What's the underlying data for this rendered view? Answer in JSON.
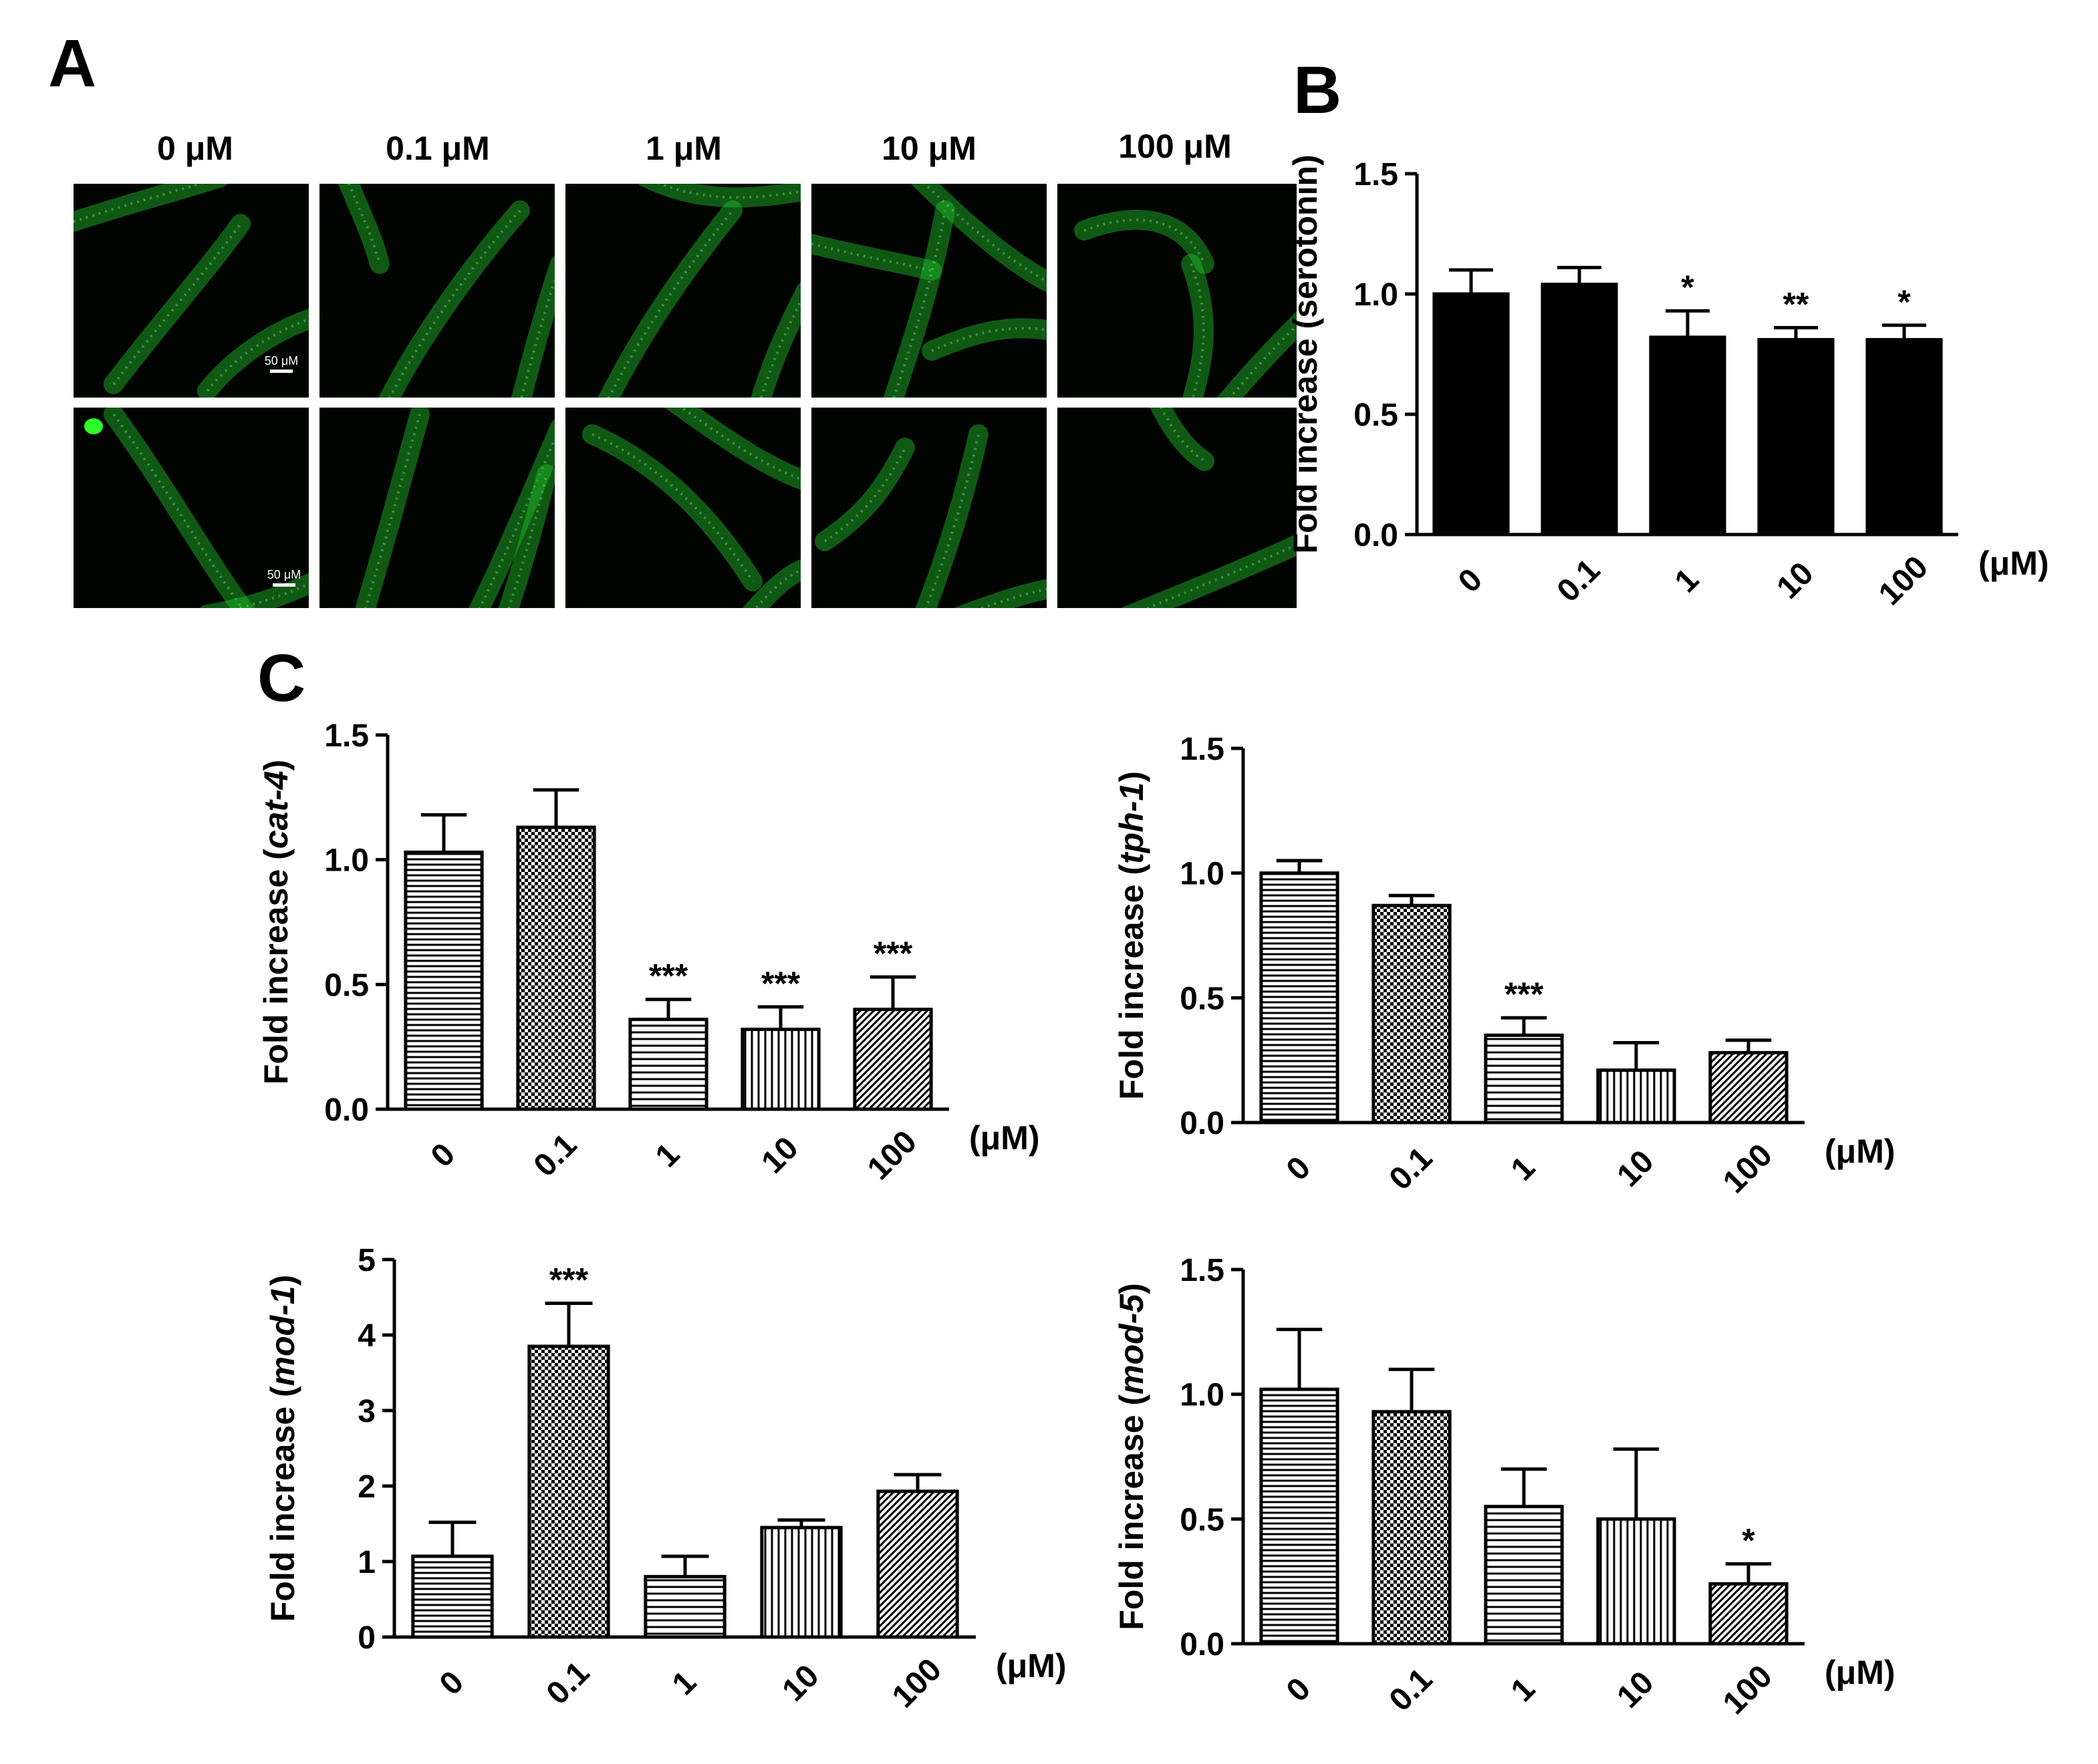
{
  "panel_a": {
    "letter": "A",
    "columns": [
      "0 μM",
      "0.1 μM",
      "1 μM",
      "10 μM",
      "100 μM"
    ],
    "scale_label": "50 μM"
  },
  "panel_b": {
    "letter": "B"
  },
  "panel_c": {
    "letter": "C"
  },
  "colors": {
    "micro_bg": "#020402",
    "fluorescence": "#22c22a",
    "bar": "#000000"
  },
  "chart_data": [
    {
      "id": "serotonin",
      "type": "bar",
      "pattern": "solid",
      "ylabel_prefix": "Fold increase (",
      "ylabel_gene": "serotonin",
      "ylabel_suffix": ")",
      "ylabel_italic": false,
      "xunit": "(μM)",
      "categories": [
        "0",
        "0.1",
        "1",
        "10",
        "100"
      ],
      "values": [
        1.0,
        1.04,
        0.82,
        0.81,
        0.81
      ],
      "errors": [
        0.1,
        0.07,
        0.11,
        0.05,
        0.06
      ],
      "significance": [
        "",
        "",
        "*",
        "**",
        "*"
      ],
      "ylim": [
        0,
        1.5
      ],
      "yticks": [
        "0.0",
        "0.5",
        "1.0",
        "1.5"
      ]
    },
    {
      "id": "cat4",
      "type": "bar",
      "pattern": "hatched",
      "ylabel_prefix": "Fold increase (",
      "ylabel_gene": "cat-4",
      "ylabel_suffix": ")",
      "ylabel_italic": true,
      "xunit": "(μM)",
      "categories": [
        "0",
        "0.1",
        "1",
        "10",
        "100"
      ],
      "values": [
        1.03,
        1.13,
        0.36,
        0.32,
        0.4
      ],
      "errors": [
        0.15,
        0.15,
        0.08,
        0.09,
        0.13
      ],
      "significance": [
        "",
        "",
        "***",
        "***",
        "***"
      ],
      "ylim": [
        0,
        1.5
      ],
      "yticks": [
        "0.0",
        "0.5",
        "1.0",
        "1.5"
      ]
    },
    {
      "id": "tph1",
      "type": "bar",
      "pattern": "hatched",
      "ylabel_prefix": "Fold increase (",
      "ylabel_gene": "tph-1",
      "ylabel_suffix": ")",
      "ylabel_italic": true,
      "xunit": "(μM)",
      "categories": [
        "0",
        "0.1",
        "1",
        "10",
        "100"
      ],
      "values": [
        1.0,
        0.87,
        0.35,
        0.21,
        0.28
      ],
      "errors": [
        0.05,
        0.04,
        0.07,
        0.11,
        0.05
      ],
      "significance": [
        "",
        "",
        "***",
        "",
        ""
      ],
      "ylim": [
        0,
        1.5
      ],
      "yticks": [
        "0.0",
        "0.5",
        "1.0",
        "1.5"
      ]
    },
    {
      "id": "mod1",
      "type": "bar",
      "pattern": "hatched",
      "ylabel_prefix": "Fold increase (",
      "ylabel_gene": "mod-1",
      "ylabel_suffix": ")",
      "ylabel_italic": true,
      "xunit": "(μM)",
      "categories": [
        "0",
        "0.1",
        "1",
        "10",
        "100"
      ],
      "values": [
        1.07,
        3.85,
        0.8,
        1.45,
        1.93
      ],
      "errors": [
        0.45,
        0.57,
        0.27,
        0.1,
        0.22
      ],
      "significance": [
        "",
        "***",
        "",
        "",
        ""
      ],
      "ylim": [
        0,
        5
      ],
      "yticks": [
        "0",
        "1",
        "2",
        "3",
        "4",
        "5"
      ]
    },
    {
      "id": "mod5",
      "type": "bar",
      "pattern": "hatched",
      "ylabel_prefix": "Fold increase (",
      "ylabel_gene": "mod-5",
      "ylabel_suffix": ")",
      "ylabel_italic": true,
      "xunit": "(μM)",
      "categories": [
        "0",
        "0.1",
        "1",
        "10",
        "100"
      ],
      "values": [
        1.02,
        0.93,
        0.55,
        0.5,
        0.24
      ],
      "errors": [
        0.24,
        0.17,
        0.15,
        0.28,
        0.08
      ],
      "significance": [
        "",
        "",
        "",
        "",
        "*"
      ],
      "ylim": [
        0,
        1.5
      ],
      "yticks": [
        "0.0",
        "0.5",
        "1.0",
        "1.5"
      ]
    }
  ]
}
